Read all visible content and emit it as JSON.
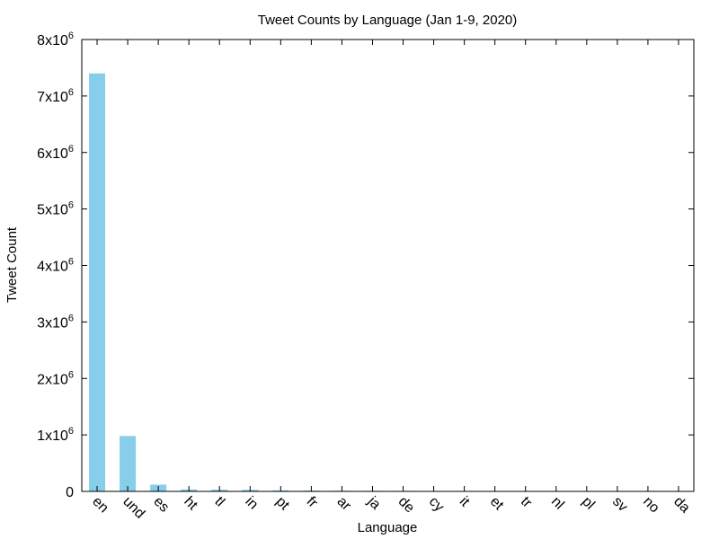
{
  "chart_data": {
    "type": "bar",
    "title": "Tweet Counts by Language (Jan 1-9, 2020)",
    "xlabel": "Language",
    "ylabel": "Tweet Count",
    "categories": [
      "en",
      "und",
      "es",
      "ht",
      "tl",
      "in",
      "pt",
      "fr",
      "ar",
      "ja",
      "de",
      "cy",
      "it",
      "et",
      "tr",
      "nl",
      "pl",
      "sv",
      "no",
      "da"
    ],
    "values": [
      7400000,
      980000,
      120000,
      35000,
      30000,
      28000,
      18000,
      15000,
      12000,
      10000,
      9000,
      8000,
      7000,
      6000,
      5000,
      4500,
      4000,
      3500,
      3000,
      2500
    ],
    "ylim": [
      0,
      8000000
    ],
    "yticks": [
      {
        "value": 0,
        "mantissa": "0",
        "exponent": ""
      },
      {
        "value": 1000000,
        "mantissa": "1x10",
        "exponent": "6"
      },
      {
        "value": 2000000,
        "mantissa": "2x10",
        "exponent": "6"
      },
      {
        "value": 3000000,
        "mantissa": "3x10",
        "exponent": "6"
      },
      {
        "value": 4000000,
        "mantissa": "4x10",
        "exponent": "6"
      },
      {
        "value": 5000000,
        "mantissa": "5x10",
        "exponent": "6"
      },
      {
        "value": 6000000,
        "mantissa": "6x10",
        "exponent": "6"
      },
      {
        "value": 7000000,
        "mantissa": "7x10",
        "exponent": "6"
      },
      {
        "value": 8000000,
        "mantissa": "8x10",
        "exponent": "6"
      }
    ],
    "bar_color": "#87ceeb",
    "grid": false,
    "legend": "none"
  }
}
